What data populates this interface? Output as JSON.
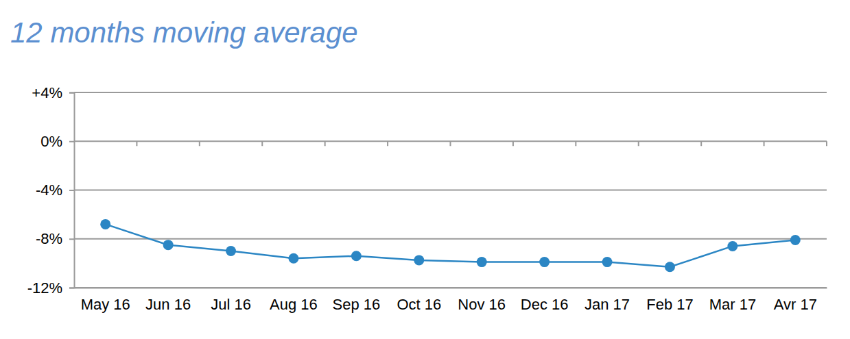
{
  "chart_data": {
    "type": "line",
    "title": "12 months moving average",
    "categories": [
      "May 16",
      "Jun 16",
      "Jul 16",
      "Aug 16",
      "Sep 16",
      "Oct 16",
      "Nov 16",
      "Dec 16",
      "Jan 17",
      "Feb 17",
      "Mar 17",
      "Avr 17"
    ],
    "values": [
      -6.8,
      -8.5,
      -9.0,
      -9.6,
      -9.4,
      -9.75,
      -9.9,
      -9.9,
      -9.9,
      -10.3,
      -8.6,
      -8.1
    ],
    "color": "#2b86c4",
    "marker": "circle",
    "ylim": [
      -12,
      4
    ],
    "yticks": [
      {
        "value": 4,
        "label": "+4%"
      },
      {
        "value": 0,
        "label": "0%"
      },
      {
        "value": -4,
        "label": "-4%"
      },
      {
        "value": -8,
        "label": "-8%"
      },
      {
        "value": -12,
        "label": "-12%"
      }
    ],
    "grid": true
  }
}
